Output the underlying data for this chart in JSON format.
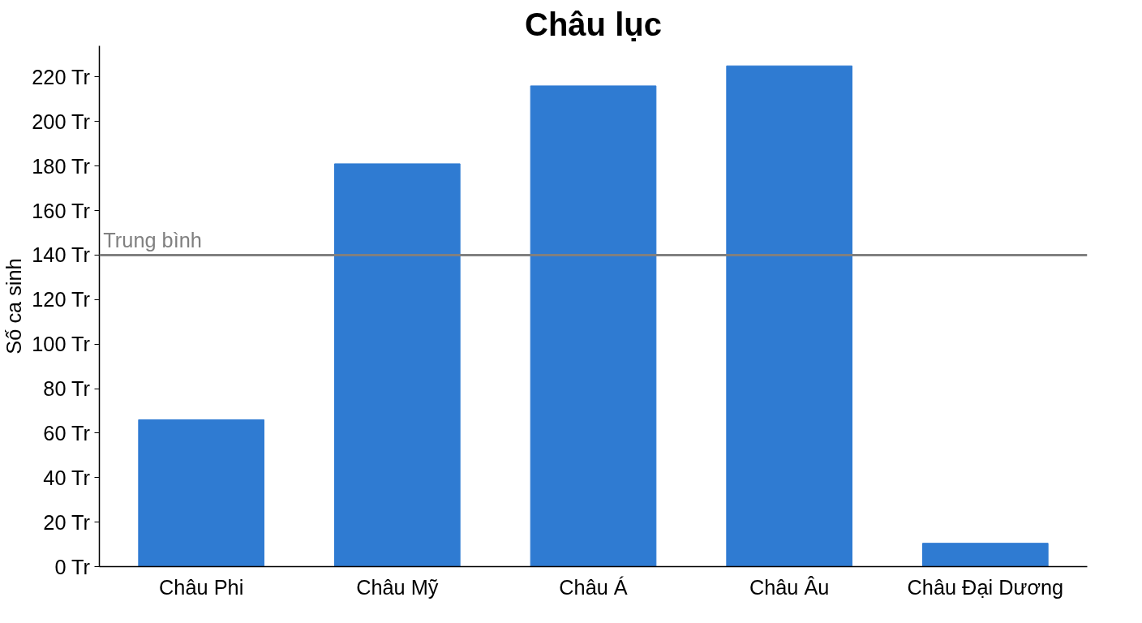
{
  "chart_data": {
    "type": "bar",
    "title": "Châu lục",
    "ylabel": "Số ca sinh",
    "categories": [
      "Châu Phi",
      "Châu Mỹ",
      "Châu Á",
      "Châu Âu",
      "Châu Đại Dương"
    ],
    "values": [
      66,
      181,
      216,
      225,
      10.5
    ],
    "color": "#2f7bd2",
    "ylim": [
      0,
      234
    ],
    "yticks": [
      {
        "value": 0,
        "label": "0 Tr"
      },
      {
        "value": 20,
        "label": "20 Tr"
      },
      {
        "value": 40,
        "label": "40 Tr"
      },
      {
        "value": 60,
        "label": "60 Tr"
      },
      {
        "value": 80,
        "label": "80 Tr"
      },
      {
        "value": 100,
        "label": "100 Tr"
      },
      {
        "value": 120,
        "label": "120 Tr"
      },
      {
        "value": 140,
        "label": "140 Tr"
      },
      {
        "value": 160,
        "label": "160 Tr"
      },
      {
        "value": 180,
        "label": "180 Tr"
      },
      {
        "value": 200,
        "label": "200 Tr"
      },
      {
        "value": 220,
        "label": "220 Tr"
      }
    ],
    "ref_lines": [
      {
        "axis": "y",
        "value": 140,
        "label": "Trung bình",
        "color": "#808080"
      }
    ],
    "grid": false
  }
}
